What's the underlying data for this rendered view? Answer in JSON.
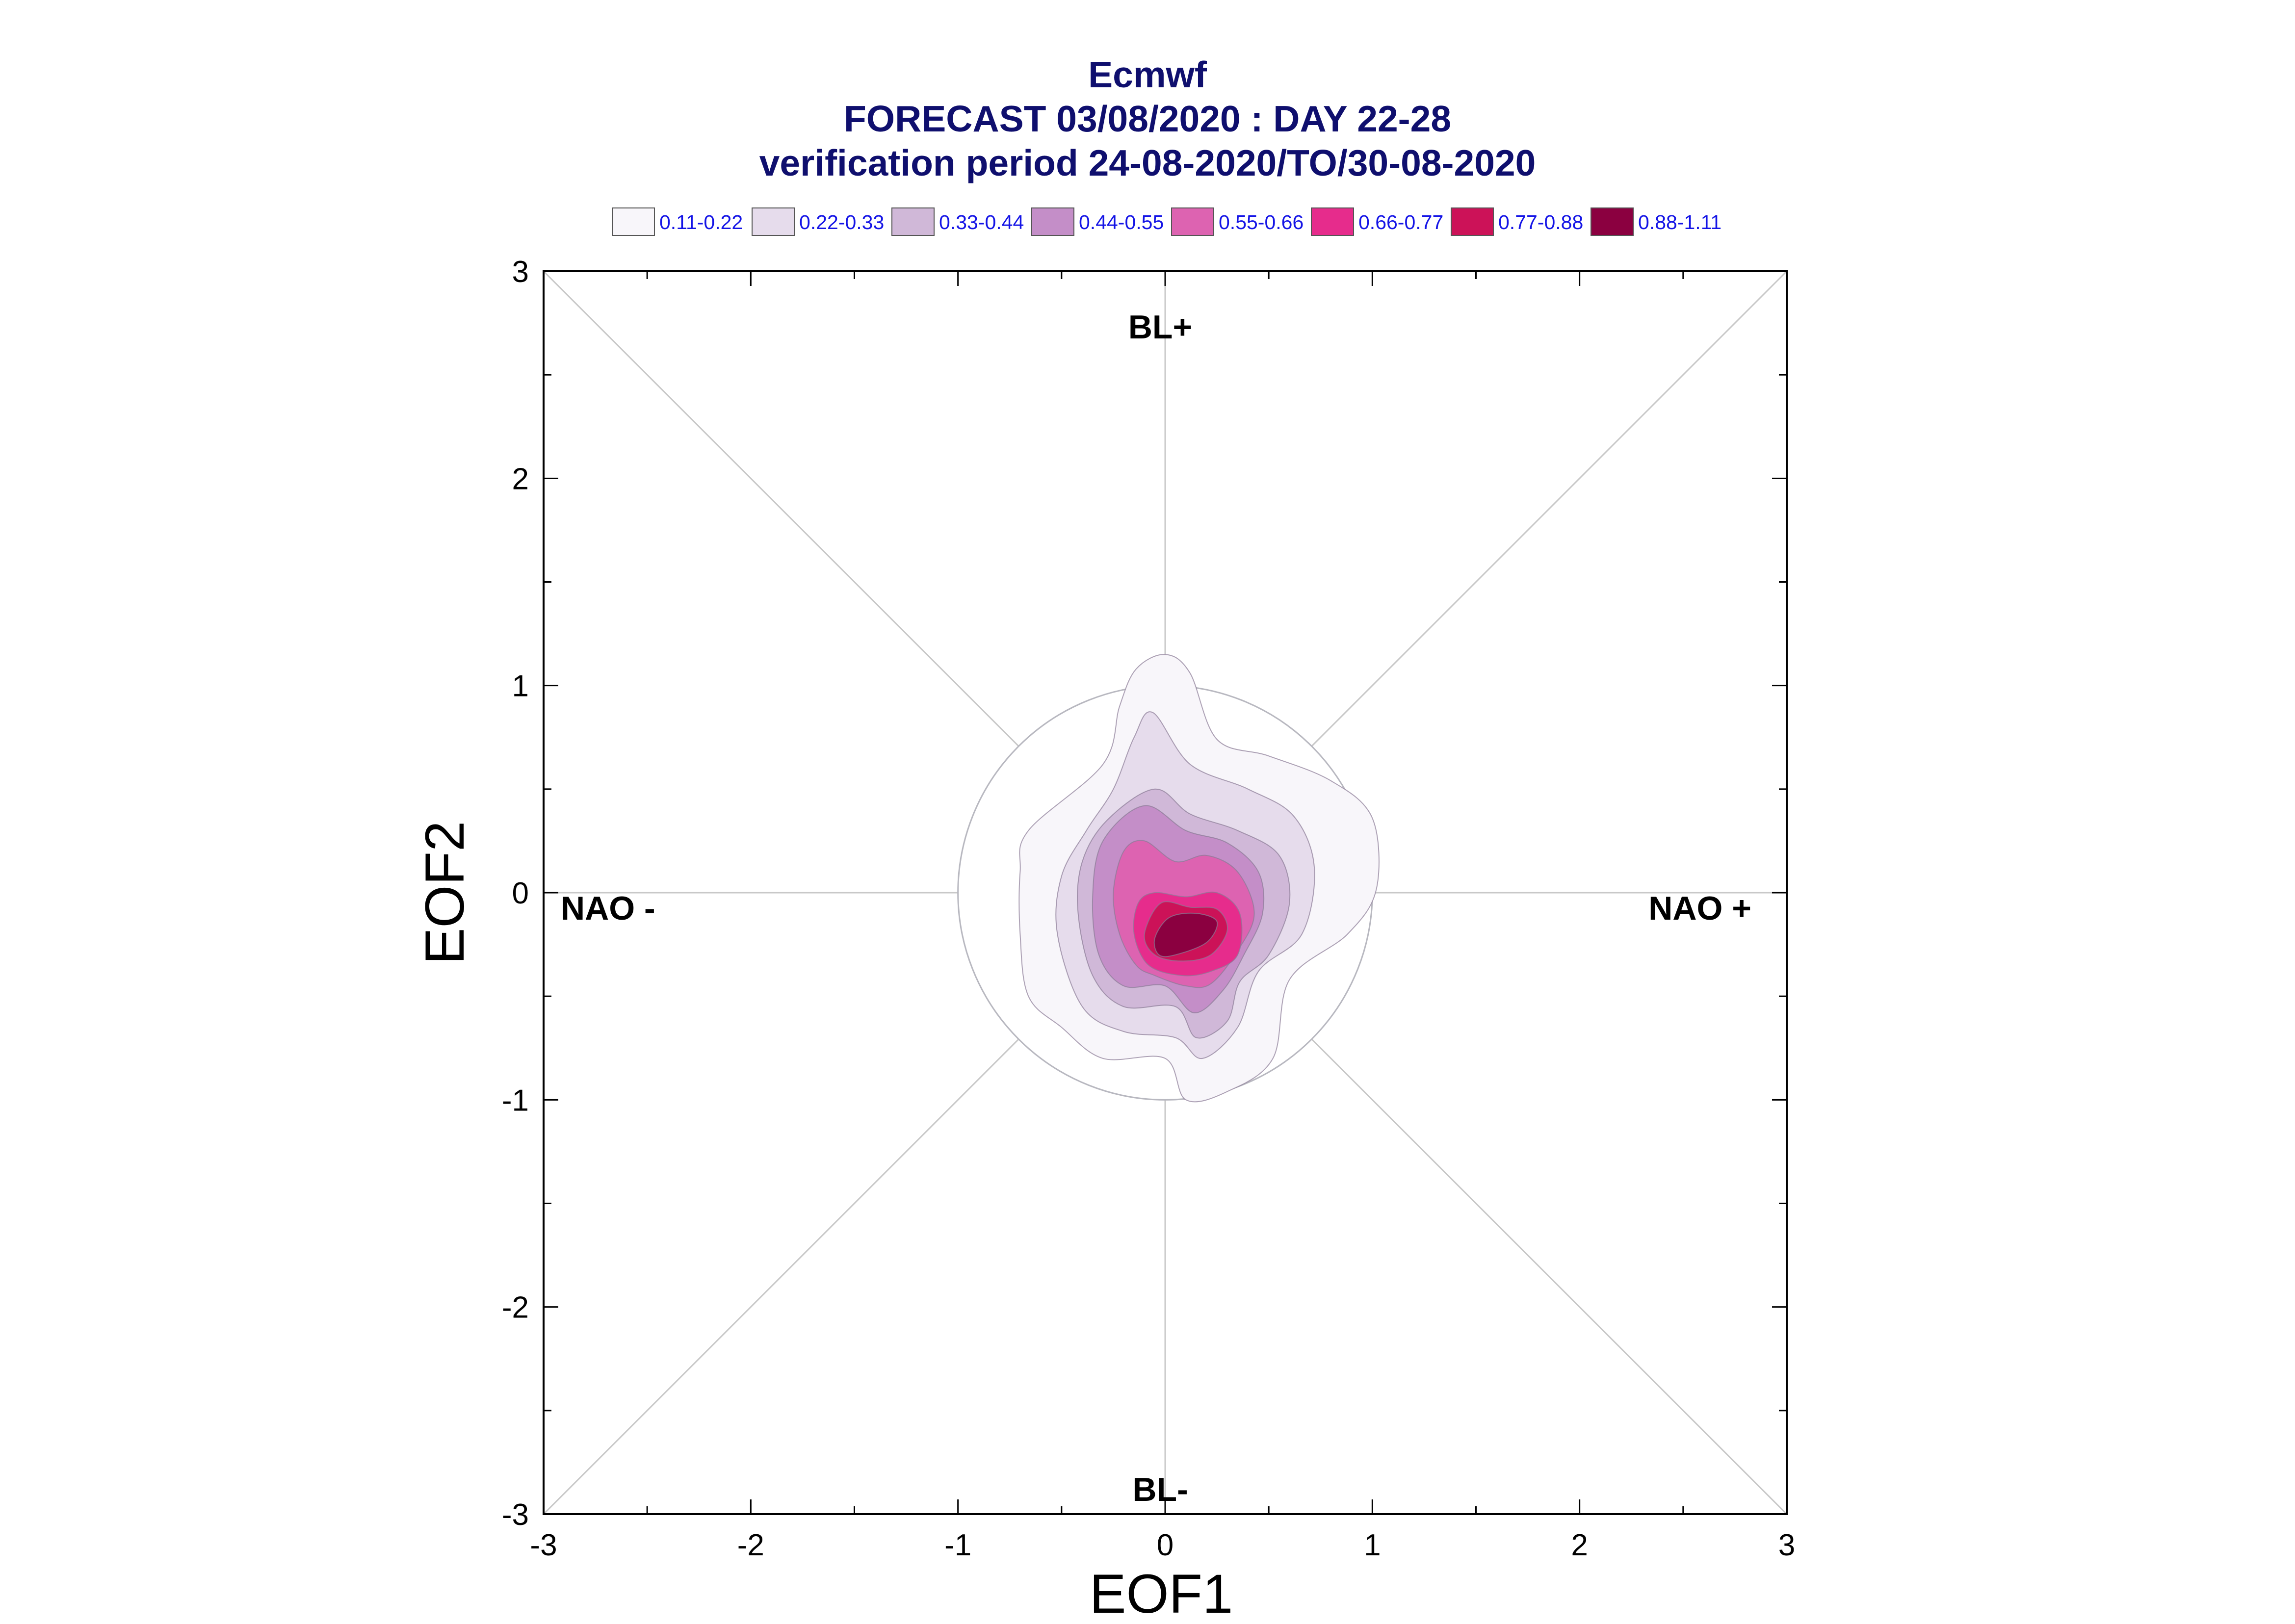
{
  "title": {
    "line1": "Ecmwf",
    "line2": "FORECAST 03/08/2020 : DAY 22-28",
    "line3": "verification period 24-08-2020/TO/30-08-2020"
  },
  "legend": [
    {
      "label": "0.11-0.22",
      "color": "#f8f6fa"
    },
    {
      "label": "0.22-0.33",
      "color": "#e6dcec"
    },
    {
      "label": "0.33-0.44",
      "color": "#d0b8d8"
    },
    {
      "label": "0.44-0.55",
      "color": "#c48ec8"
    },
    {
      "label": "0.55-0.66",
      "color": "#dd63b1"
    },
    {
      "label": "0.66-0.77",
      "color": "#e62c8c"
    },
    {
      "label": "0.77-0.88",
      "color": "#cc1258"
    },
    {
      "label": "0.88-1.11",
      "color": "#8b0040"
    }
  ],
  "regimes": {
    "top": "BL+",
    "bottom": "BL-",
    "left": "NAO -",
    "right": "NAO +"
  },
  "chart_data": {
    "type": "contour",
    "xlabel": "EOF1",
    "ylabel": "EOF2",
    "xlim": [
      -3,
      3
    ],
    "ylim": [
      -3,
      3
    ],
    "xticks": [
      "-3",
      "-2",
      "-1",
      "0",
      "1",
      "2",
      "3"
    ],
    "yticks": [
      "-3",
      "-2",
      "-1",
      "0",
      "1",
      "2",
      "3"
    ],
    "reference_circle_radius": 1,
    "levels": [
      {
        "range": "0.11-0.22",
        "polygon": [
          [
            0.0,
            1.15
          ],
          [
            0.12,
            1.06
          ],
          [
            0.25,
            0.74
          ],
          [
            0.5,
            0.66
          ],
          [
            0.8,
            0.54
          ],
          [
            1.0,
            0.36
          ],
          [
            1.02,
            0.02
          ],
          [
            0.88,
            -0.2
          ],
          [
            0.6,
            -0.42
          ],
          [
            0.52,
            -0.8
          ],
          [
            0.3,
            -0.96
          ],
          [
            0.1,
            -1.0
          ],
          [
            0.0,
            -0.8
          ],
          [
            -0.3,
            -0.8
          ],
          [
            -0.5,
            -0.65
          ],
          [
            -0.66,
            -0.5
          ],
          [
            -0.7,
            -0.2
          ],
          [
            -0.7,
            0.1
          ],
          [
            -0.66,
            0.3
          ],
          [
            -0.3,
            0.62
          ],
          [
            -0.22,
            0.9
          ],
          [
            -0.14,
            1.08
          ]
        ]
      },
      {
        "range": "0.22-0.33",
        "polygon": [
          [
            -0.06,
            0.87
          ],
          [
            0.12,
            0.62
          ],
          [
            0.4,
            0.5
          ],
          [
            0.62,
            0.37
          ],
          [
            0.72,
            0.12
          ],
          [
            0.66,
            -0.2
          ],
          [
            0.45,
            -0.38
          ],
          [
            0.35,
            -0.65
          ],
          [
            0.18,
            -0.8
          ],
          [
            0.05,
            -0.7
          ],
          [
            -0.2,
            -0.67
          ],
          [
            -0.4,
            -0.55
          ],
          [
            -0.52,
            -0.2
          ],
          [
            -0.5,
            0.08
          ],
          [
            -0.38,
            0.3
          ],
          [
            -0.25,
            0.5
          ],
          [
            -0.15,
            0.75
          ]
        ]
      },
      {
        "range": "0.33-0.44",
        "polygon": [
          [
            -0.05,
            0.5
          ],
          [
            0.12,
            0.38
          ],
          [
            0.35,
            0.3
          ],
          [
            0.55,
            0.18
          ],
          [
            0.6,
            -0.05
          ],
          [
            0.5,
            -0.3
          ],
          [
            0.36,
            -0.43
          ],
          [
            0.3,
            -0.62
          ],
          [
            0.15,
            -0.7
          ],
          [
            0.05,
            -0.55
          ],
          [
            -0.2,
            -0.55
          ],
          [
            -0.35,
            -0.4
          ],
          [
            -0.42,
            -0.1
          ],
          [
            -0.4,
            0.15
          ],
          [
            -0.28,
            0.35
          ]
        ]
      },
      {
        "range": "0.44-0.55",
        "polygon": [
          [
            -0.1,
            0.42
          ],
          [
            0.1,
            0.3
          ],
          [
            0.3,
            0.24
          ],
          [
            0.45,
            0.1
          ],
          [
            0.47,
            -0.1
          ],
          [
            0.38,
            -0.3
          ],
          [
            0.28,
            -0.47
          ],
          [
            0.14,
            -0.58
          ],
          [
            0.0,
            -0.45
          ],
          [
            -0.2,
            -0.45
          ],
          [
            -0.32,
            -0.3
          ],
          [
            -0.35,
            -0.02
          ],
          [
            -0.3,
            0.25
          ]
        ]
      },
      {
        "range": "0.55-0.66",
        "polygon": [
          [
            -0.1,
            0.25
          ],
          [
            0.05,
            0.15
          ],
          [
            0.2,
            0.18
          ],
          [
            0.35,
            0.1
          ],
          [
            0.43,
            -0.1
          ],
          [
            0.35,
            -0.28
          ],
          [
            0.22,
            -0.44
          ],
          [
            0.1,
            -0.45
          ],
          [
            -0.05,
            -0.4
          ],
          [
            -0.14,
            -0.35
          ],
          [
            -0.22,
            -0.2
          ],
          [
            -0.25,
            0.0
          ],
          [
            -0.2,
            0.2
          ]
        ]
      },
      {
        "range": "0.66-0.77",
        "polygon": [
          [
            -0.05,
            0.0
          ],
          [
            0.1,
            -0.02
          ],
          [
            0.25,
            0.0
          ],
          [
            0.36,
            -0.1
          ],
          [
            0.35,
            -0.3
          ],
          [
            0.22,
            -0.38
          ],
          [
            0.08,
            -0.4
          ],
          [
            -0.08,
            -0.35
          ],
          [
            -0.15,
            -0.2
          ],
          [
            -0.13,
            -0.05
          ]
        ]
      },
      {
        "range": "0.77-0.88",
        "polygon": [
          [
            -0.02,
            -0.05
          ],
          [
            0.12,
            -0.07
          ],
          [
            0.25,
            -0.08
          ],
          [
            0.3,
            -0.18
          ],
          [
            0.22,
            -0.3
          ],
          [
            0.08,
            -0.33
          ],
          [
            -0.05,
            -0.3
          ],
          [
            -0.1,
            -0.2
          ]
        ]
      },
      {
        "range": "0.88-1.11",
        "polygon": [
          [
            0.02,
            -0.12
          ],
          [
            0.15,
            -0.1
          ],
          [
            0.25,
            -0.14
          ],
          [
            0.2,
            -0.24
          ],
          [
            0.05,
            -0.3
          ],
          [
            -0.03,
            -0.3
          ],
          [
            -0.05,
            -0.22
          ]
        ]
      }
    ]
  }
}
